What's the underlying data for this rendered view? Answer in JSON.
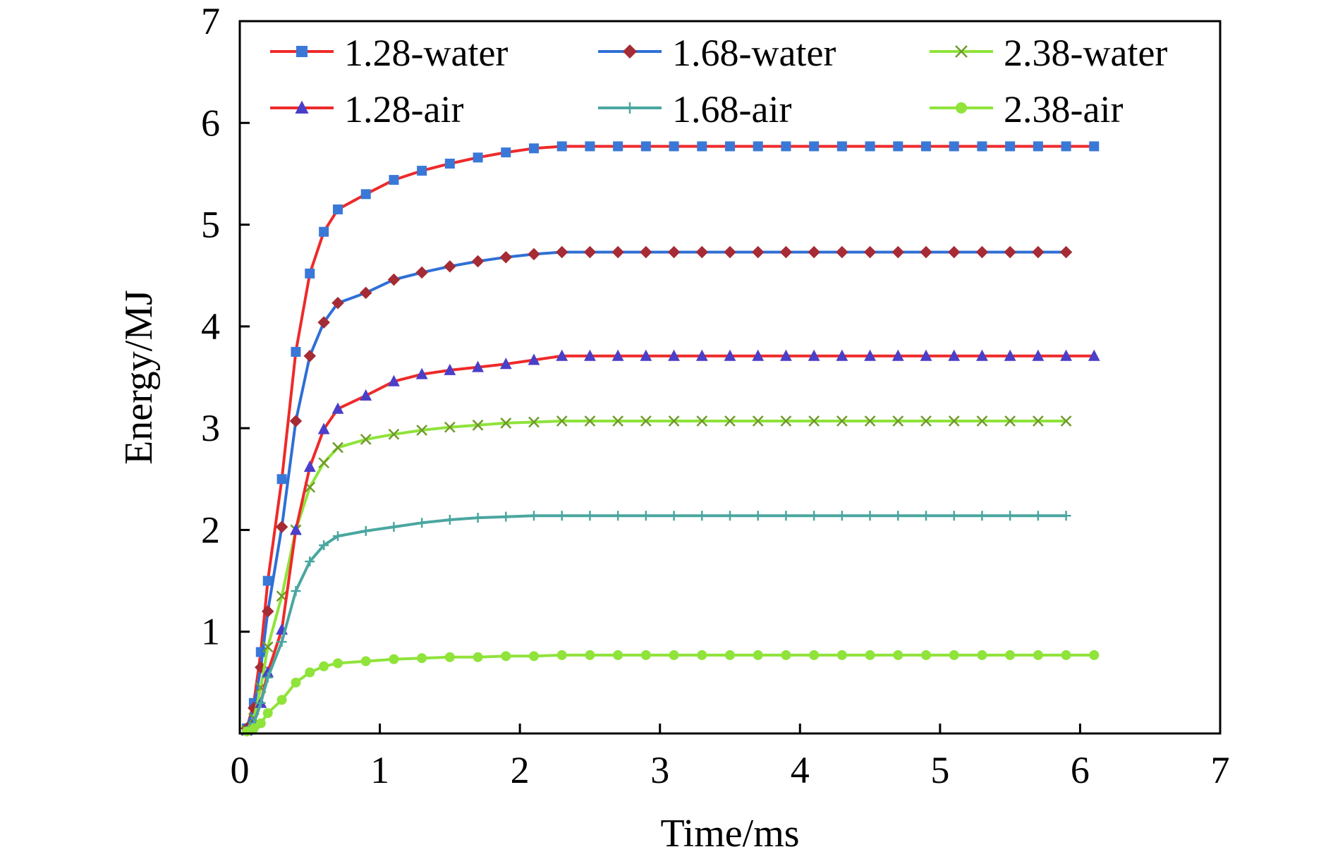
{
  "chart_data": {
    "type": "line",
    "xlabel": "Time/ms",
    "ylabel": "Energy/MJ",
    "xlim": [
      0,
      7
    ],
    "ylim": [
      0,
      7
    ],
    "x_ticks": [
      0,
      1,
      2,
      3,
      4,
      5,
      6,
      7
    ],
    "y_ticks": [
      1,
      2,
      3,
      4,
      5,
      6,
      7
    ],
    "x_tick_labels": [
      "0",
      "1",
      "2",
      "3",
      "4",
      "5",
      "6",
      "7"
    ],
    "y_tick_labels": [
      "1",
      "2",
      "3",
      "4",
      "5",
      "6",
      "7"
    ],
    "grid": false,
    "legend": {
      "placement": "top",
      "columns": 3
    },
    "series": [
      {
        "name": "1.28-water",
        "line_color": "#ee2a2a",
        "marker": "square",
        "marker_color": "#3a78d8",
        "x": [
          0.05,
          0.1,
          0.15,
          0.2,
          0.3,
          0.4,
          0.5,
          0.6,
          0.7,
          0.9,
          1.1,
          1.3,
          1.5,
          1.7,
          1.9,
          2.1,
          2.3,
          2.5,
          2.7,
          2.9,
          3.1,
          3.3,
          3.5,
          3.7,
          3.9,
          4.1,
          4.3,
          4.5,
          4.7,
          4.9,
          5.1,
          5.3,
          5.5,
          5.7,
          5.9,
          6.1
        ],
        "y": [
          0.05,
          0.3,
          0.8,
          1.5,
          2.5,
          3.75,
          4.52,
          4.93,
          5.15,
          5.3,
          5.44,
          5.53,
          5.6,
          5.66,
          5.71,
          5.75,
          5.77,
          5.77,
          5.77,
          5.77,
          5.77,
          5.77,
          5.77,
          5.77,
          5.77,
          5.77,
          5.77,
          5.77,
          5.77,
          5.77,
          5.77,
          5.77,
          5.77,
          5.77,
          5.77,
          5.77
        ]
      },
      {
        "name": "1.68-water",
        "line_color": "#2f6fd6",
        "marker": "diamond",
        "marker_color": "#a52b35",
        "x": [
          0.05,
          0.1,
          0.15,
          0.2,
          0.3,
          0.4,
          0.5,
          0.6,
          0.7,
          0.9,
          1.1,
          1.3,
          1.5,
          1.7,
          1.9,
          2.1,
          2.3,
          2.5,
          2.7,
          2.9,
          3.1,
          3.3,
          3.5,
          3.7,
          3.9,
          4.1,
          4.3,
          4.5,
          4.7,
          4.9,
          5.1,
          5.3,
          5.5,
          5.7,
          5.9
        ],
        "y": [
          0.05,
          0.25,
          0.65,
          1.2,
          2.03,
          3.07,
          3.71,
          4.04,
          4.23,
          4.33,
          4.46,
          4.53,
          4.59,
          4.64,
          4.68,
          4.71,
          4.73,
          4.73,
          4.73,
          4.73,
          4.73,
          4.73,
          4.73,
          4.73,
          4.73,
          4.73,
          4.73,
          4.73,
          4.73,
          4.73,
          4.73,
          4.73,
          4.73,
          4.73,
          4.73
        ]
      },
      {
        "name": "2.38-water",
        "line_color": "#8fe33a",
        "marker": "x",
        "marker_color": "#6f9b2a",
        "x": [
          0.05,
          0.1,
          0.15,
          0.2,
          0.3,
          0.4,
          0.5,
          0.6,
          0.7,
          0.9,
          1.1,
          1.3,
          1.5,
          1.7,
          1.9,
          2.1,
          2.3,
          2.5,
          2.7,
          2.9,
          3.1,
          3.3,
          3.5,
          3.7,
          3.9,
          4.1,
          4.3,
          4.5,
          4.7,
          4.9,
          5.1,
          5.3,
          5.5,
          5.7,
          5.9
        ],
        "y": [
          0.03,
          0.15,
          0.45,
          0.85,
          1.35,
          2.0,
          2.42,
          2.66,
          2.81,
          2.89,
          2.94,
          2.98,
          3.01,
          3.03,
          3.05,
          3.06,
          3.07,
          3.07,
          3.07,
          3.07,
          3.07,
          3.07,
          3.07,
          3.07,
          3.07,
          3.07,
          3.07,
          3.07,
          3.07,
          3.07,
          3.07,
          3.07,
          3.07,
          3.07,
          3.07
        ]
      },
      {
        "name": "1.28-air",
        "line_color": "#ee2a2a",
        "marker": "triangle",
        "marker_color": "#4a3fc8",
        "x": [
          0.05,
          0.1,
          0.15,
          0.2,
          0.3,
          0.4,
          0.5,
          0.6,
          0.7,
          0.9,
          1.1,
          1.3,
          1.5,
          1.7,
          1.9,
          2.1,
          2.3,
          2.5,
          2.7,
          2.9,
          3.1,
          3.3,
          3.5,
          3.7,
          3.9,
          4.1,
          4.3,
          4.5,
          4.7,
          4.9,
          5.1,
          5.3,
          5.5,
          5.7,
          5.9,
          6.1
        ],
        "y": [
          0.03,
          0.1,
          0.3,
          0.6,
          1.02,
          2.0,
          2.62,
          2.99,
          3.19,
          3.32,
          3.46,
          3.53,
          3.57,
          3.6,
          3.63,
          3.67,
          3.71,
          3.71,
          3.71,
          3.71,
          3.71,
          3.71,
          3.71,
          3.71,
          3.71,
          3.71,
          3.71,
          3.71,
          3.71,
          3.71,
          3.71,
          3.71,
          3.71,
          3.71,
          3.71,
          3.71
        ]
      },
      {
        "name": "1.68-air",
        "line_color": "#4aa6a0",
        "marker": "plus",
        "marker_color": "#4aa6a0",
        "x": [
          0.05,
          0.1,
          0.15,
          0.2,
          0.3,
          0.4,
          0.5,
          0.6,
          0.7,
          0.9,
          1.1,
          1.3,
          1.5,
          1.7,
          1.9,
          2.1,
          2.3,
          2.5,
          2.7,
          2.9,
          3.1,
          3.3,
          3.5,
          3.7,
          3.9,
          4.1,
          4.3,
          4.5,
          4.7,
          4.9,
          5.1,
          5.3,
          5.5,
          5.7,
          5.9
        ],
        "y": [
          0.02,
          0.1,
          0.3,
          0.55,
          0.9,
          1.4,
          1.69,
          1.85,
          1.94,
          1.99,
          2.03,
          2.07,
          2.1,
          2.12,
          2.13,
          2.14,
          2.14,
          2.14,
          2.14,
          2.14,
          2.14,
          2.14,
          2.14,
          2.14,
          2.14,
          2.14,
          2.14,
          2.14,
          2.14,
          2.14,
          2.14,
          2.14,
          2.14,
          2.14,
          2.14
        ]
      },
      {
        "name": "2.38-air",
        "line_color": "#8fe33a",
        "marker": "circle",
        "marker_color": "#8fe33a",
        "x": [
          0.05,
          0.1,
          0.15,
          0.2,
          0.3,
          0.4,
          0.5,
          0.6,
          0.7,
          0.9,
          1.1,
          1.3,
          1.5,
          1.7,
          1.9,
          2.1,
          2.3,
          2.5,
          2.7,
          2.9,
          3.1,
          3.3,
          3.5,
          3.7,
          3.9,
          4.1,
          4.3,
          4.5,
          4.7,
          4.9,
          5.1,
          5.3,
          5.5,
          5.7,
          5.9,
          6.1
        ],
        "y": [
          0.02,
          0.05,
          0.1,
          0.2,
          0.33,
          0.5,
          0.6,
          0.66,
          0.69,
          0.71,
          0.73,
          0.74,
          0.75,
          0.75,
          0.76,
          0.76,
          0.77,
          0.77,
          0.77,
          0.77,
          0.77,
          0.77,
          0.77,
          0.77,
          0.77,
          0.77,
          0.77,
          0.77,
          0.77,
          0.77,
          0.77,
          0.77,
          0.77,
          0.77,
          0.77,
          0.77
        ]
      }
    ]
  }
}
